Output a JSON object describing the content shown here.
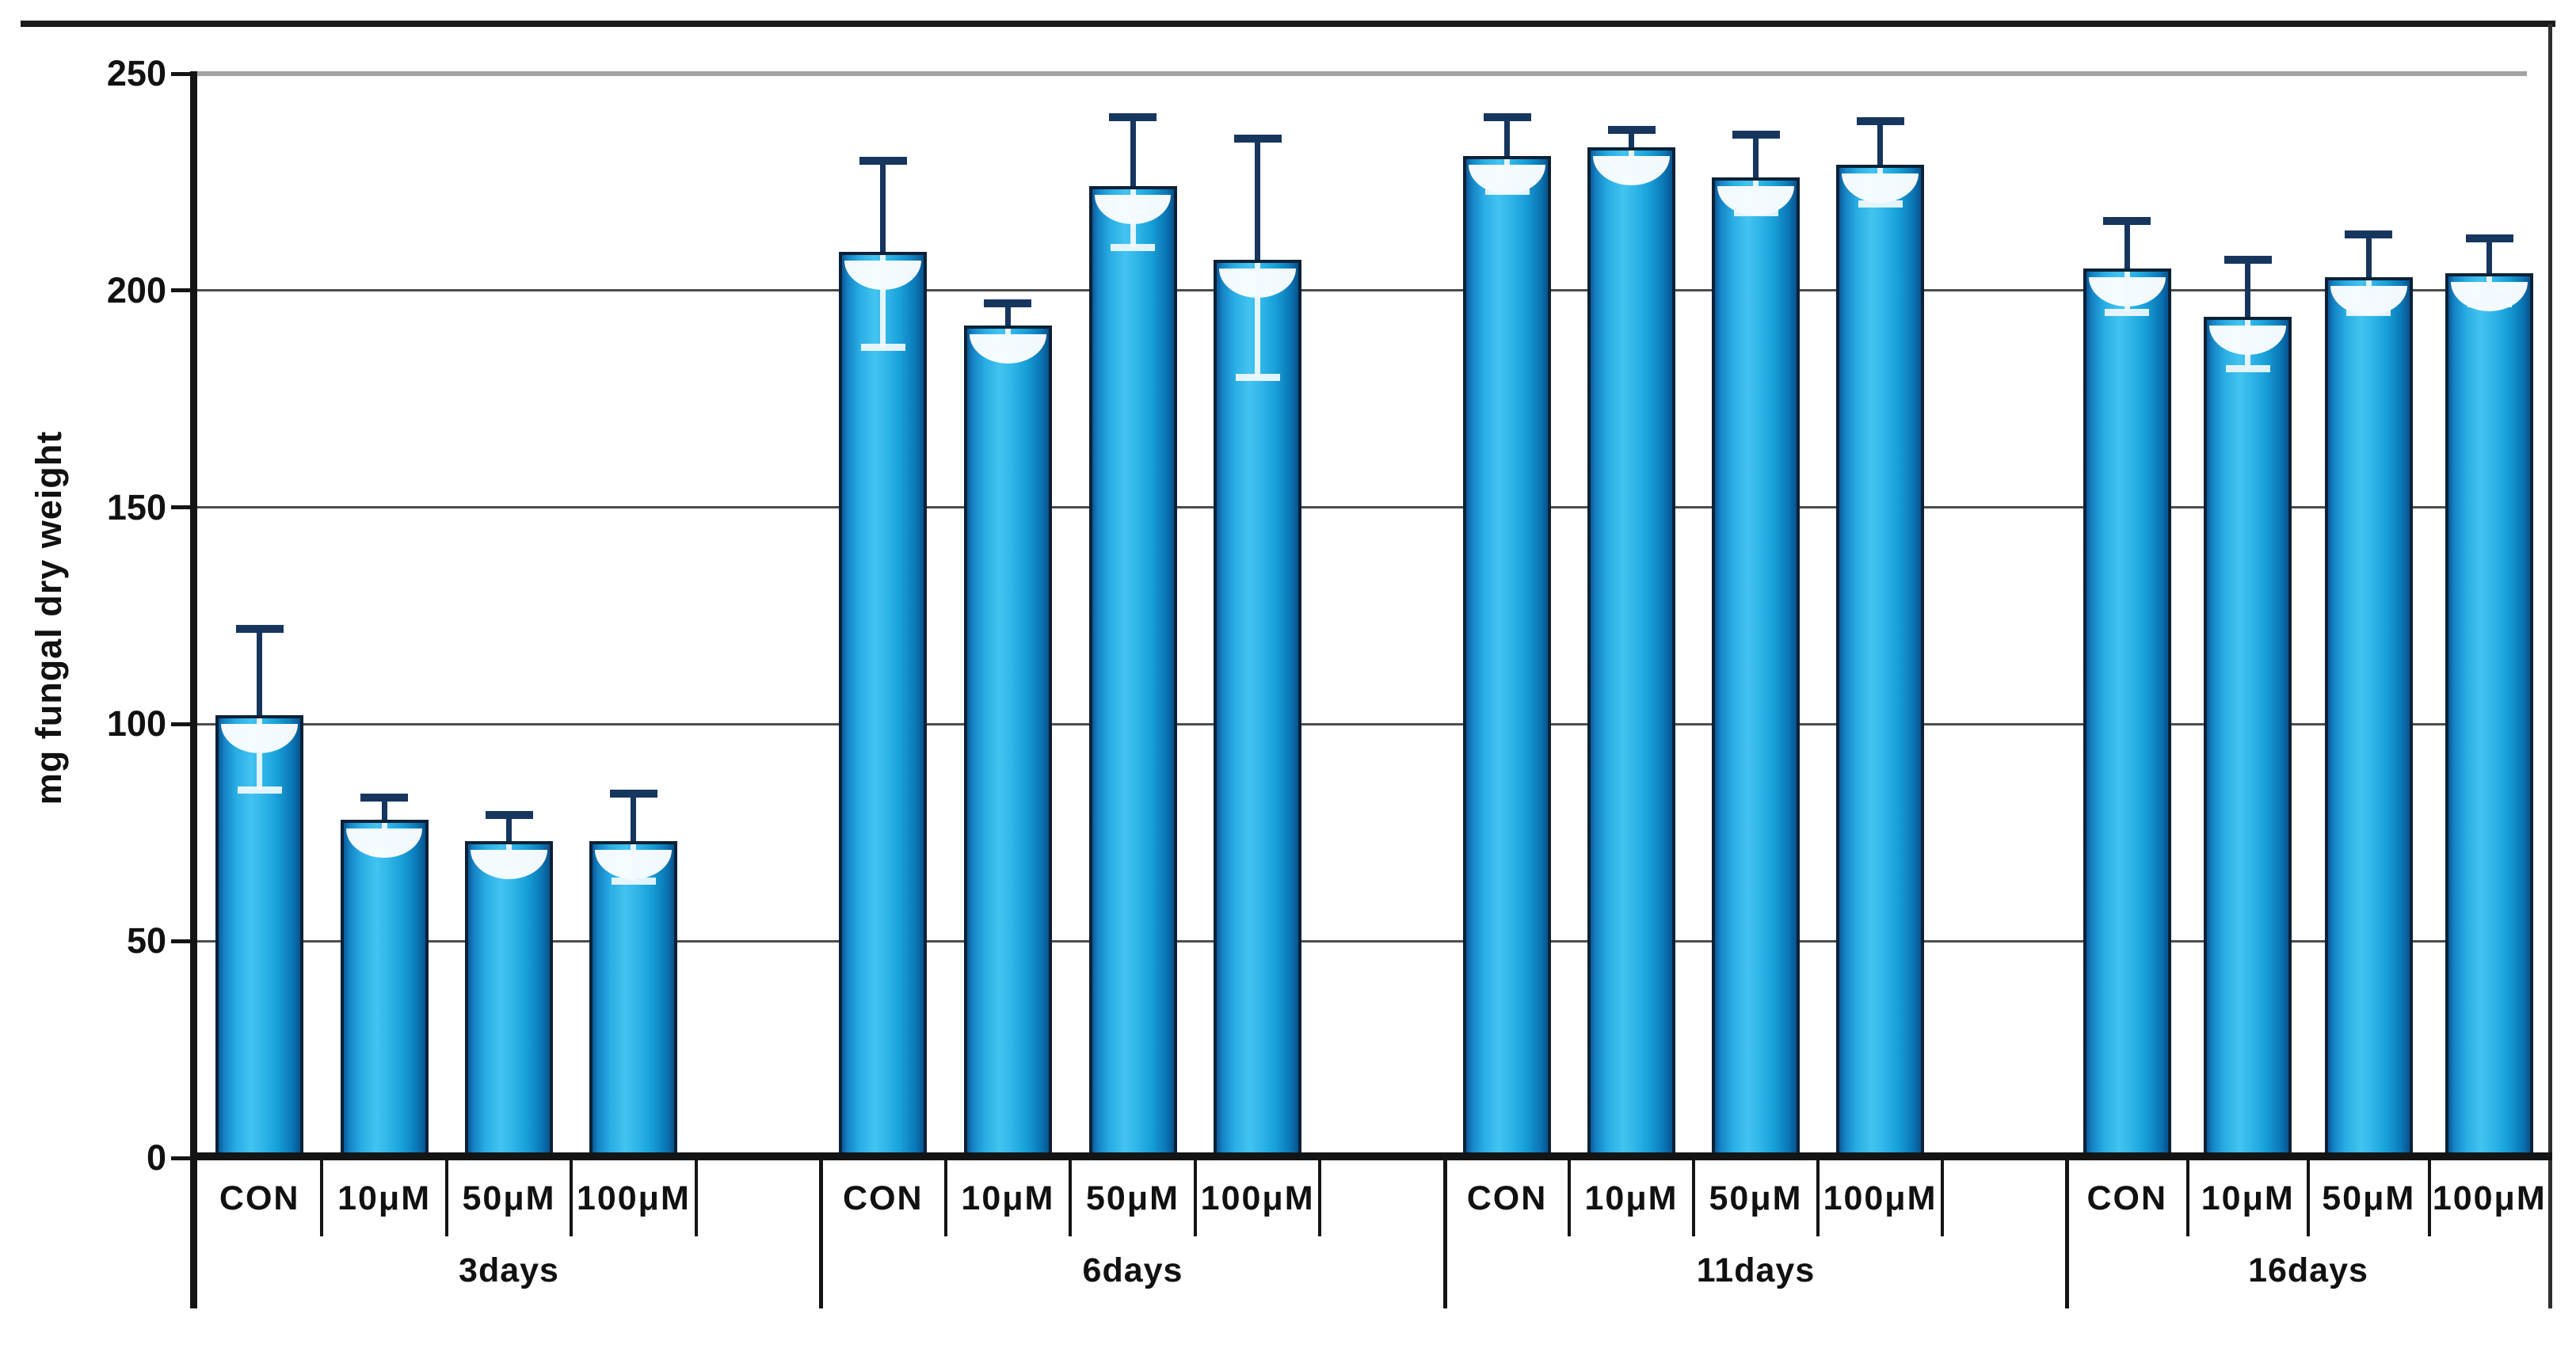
{
  "chart_data": {
    "type": "bar",
    "title": "",
    "ylabel": "mg  fungal dry weight",
    "xlabel": "",
    "ylim": [
      0,
      250
    ],
    "yticks": [
      0,
      50,
      100,
      150,
      200,
      250
    ],
    "ytick_labels": [
      "0",
      "50",
      "100",
      "150",
      "200",
      "250"
    ],
    "grid": true,
    "legend_position": "none",
    "categories_per_group": [
      "CON",
      "10μM",
      "50μM",
      "100μM"
    ],
    "groups": [
      {
        "label": "3days",
        "values": [
          102,
          78,
          73,
          73
        ],
        "err_low": [
          85,
          73,
          68,
          64
        ],
        "err_high": [
          122,
          83,
          79,
          84
        ]
      },
      {
        "label": "6days",
        "values": [
          209,
          192,
          224,
          207
        ],
        "err_low": [
          187,
          187,
          210,
          180
        ],
        "err_high": [
          230,
          197,
          240,
          235
        ]
      },
      {
        "label": "11days",
        "values": [
          231,
          233,
          226,
          229
        ],
        "err_low": [
          223,
          228,
          218,
          220
        ],
        "err_high": [
          240,
          237,
          236,
          239
        ]
      },
      {
        "label": "16days",
        "values": [
          205,
          194,
          203,
          204
        ],
        "err_low": [
          195,
          182,
          195,
          197
        ],
        "err_high": [
          216,
          207,
          213,
          212
        ]
      }
    ],
    "colors": {
      "bar_fill": "#1aa7e0",
      "bar_highlight": "#43c3f0",
      "bar_edge": "#0c2136",
      "error_bar": "#16365e",
      "gridline": "#4d4d4d",
      "gridline_250": "#a3a3a3",
      "axis": "#141414"
    }
  }
}
